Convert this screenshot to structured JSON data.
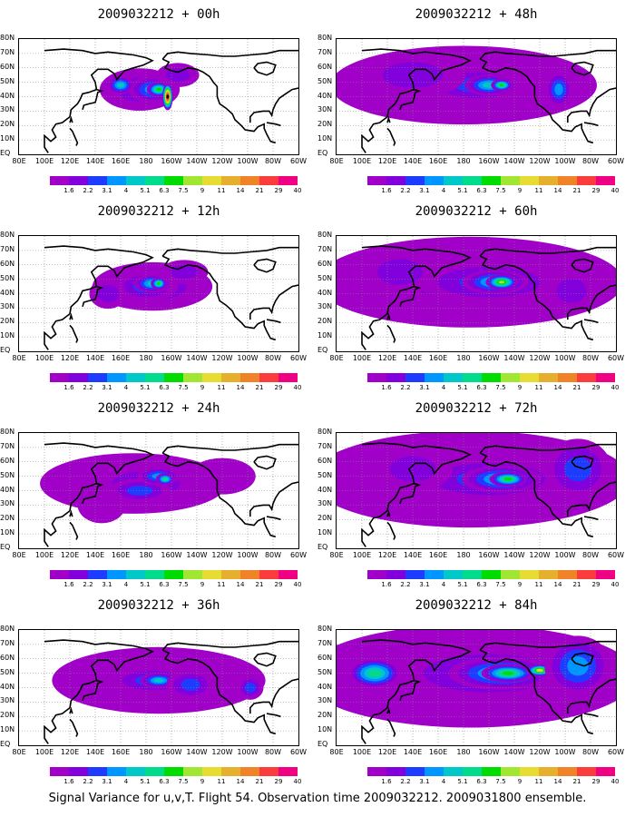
{
  "chart_data": {
    "type": "heatmap",
    "caption": "Signal Variance for u,v,T. Flight 54. Observation time 2009032212. 2009031800 ensemble.",
    "x_ticks": [
      "80E",
      "100E",
      "120E",
      "140E",
      "160E",
      "180",
      "160W",
      "140W",
      "120W",
      "100W",
      "80W",
      "60W"
    ],
    "y_ticks": [
      "80N",
      "70N",
      "60N",
      "50N",
      "40N",
      "30N",
      "20N",
      "10N",
      "EQ"
    ],
    "grid": true,
    "colorbar": {
      "levels": [
        "1.6",
        "2.2",
        "3.1",
        "4",
        "5.1",
        "6.3",
        "7.5",
        "9",
        "11",
        "14",
        "21",
        "29",
        "40"
      ],
      "colors": [
        "#a000c8",
        "#8200dc",
        "#1e3cff",
        "#0096ff",
        "#00c8c8",
        "#00dc8c",
        "#00dc00",
        "#a0e632",
        "#e6dc32",
        "#e6af2d",
        "#f08228",
        "#fa3c3c",
        "#f00082"
      ]
    },
    "panels": [
      {
        "title": "2009032212 + 00h",
        "blobs": [
          [
            175,
            45,
            30,
            14,
            1
          ],
          [
            185,
            45,
            18,
            9,
            3
          ],
          [
            190,
            45,
            9,
            5,
            6
          ],
          [
            197,
            40,
            4,
            9,
            13
          ],
          [
            160,
            48,
            10,
            6,
            4
          ],
          [
            205,
            55,
            16,
            8,
            1
          ]
        ]
      },
      {
        "title": "2009032212 + 12h",
        "blobs": [
          [
            185,
            45,
            45,
            16,
            1
          ],
          [
            180,
            45,
            24,
            10,
            2
          ],
          [
            185,
            47,
            14,
            6,
            4
          ],
          [
            190,
            47,
            6,
            4,
            6
          ],
          [
            210,
            55,
            18,
            8,
            1
          ],
          [
            150,
            40,
            14,
            10,
            1
          ]
        ]
      },
      {
        "title": "2009032212 + 24h",
        "blobs": [
          [
            170,
            45,
            70,
            20,
            0
          ],
          [
            180,
            45,
            45,
            14,
            1
          ],
          [
            175,
            40,
            24,
            8,
            2
          ],
          [
            190,
            50,
            16,
            6,
            3
          ],
          [
            195,
            48,
            7,
            4,
            5
          ],
          [
            240,
            50,
            25,
            12,
            0
          ],
          [
            145,
            30,
            18,
            12,
            0
          ]
        ]
      },
      {
        "title": "2009032212 + 36h",
        "blobs": [
          [
            190,
            45,
            80,
            22,
            0
          ],
          [
            185,
            45,
            55,
            15,
            1
          ],
          [
            185,
            45,
            32,
            9,
            2
          ],
          [
            190,
            45,
            14,
            5,
            4
          ],
          [
            215,
            42,
            18,
            10,
            2
          ],
          [
            262,
            40,
            10,
            8,
            2
          ]
        ]
      },
      {
        "title": "2009032212 + 48h",
        "blobs": [
          [
            180,
            48,
            100,
            26,
            0
          ],
          [
            185,
            48,
            70,
            18,
            1
          ],
          [
            190,
            48,
            40,
            12,
            2
          ],
          [
            200,
            48,
            18,
            7,
            4
          ],
          [
            210,
            48,
            8,
            4,
            6
          ],
          [
            255,
            45,
            10,
            12,
            3
          ],
          [
            140,
            55,
            40,
            15,
            1
          ]
        ]
      },
      {
        "title": "2009032212 + 60h",
        "blobs": [
          [
            185,
            48,
            115,
            30,
            0
          ],
          [
            190,
            48,
            85,
            22,
            1
          ],
          [
            200,
            48,
            55,
            14,
            2
          ],
          [
            205,
            48,
            25,
            8,
            4
          ],
          [
            210,
            48,
            12,
            5,
            7
          ],
          [
            265,
            42,
            20,
            14,
            1
          ],
          [
            130,
            55,
            30,
            15,
            1
          ]
        ]
      },
      {
        "title": "2009032212 + 72h",
        "blobs": [
          [
            185,
            48,
            120,
            32,
            0
          ],
          [
            195,
            48,
            95,
            25,
            1
          ],
          [
            200,
            48,
            60,
            15,
            2
          ],
          [
            210,
            48,
            30,
            9,
            4
          ],
          [
            215,
            48,
            14,
            5,
            6
          ],
          [
            270,
            55,
            25,
            20,
            2
          ],
          [
            140,
            55,
            30,
            15,
            1
          ]
        ]
      },
      {
        "title": "2009032212 + 84h",
        "blobs": [
          [
            185,
            48,
            125,
            34,
            0
          ],
          [
            190,
            50,
            100,
            27,
            1
          ],
          [
            200,
            50,
            70,
            18,
            2
          ],
          [
            210,
            50,
            40,
            11,
            4
          ],
          [
            215,
            50,
            20,
            6,
            6
          ],
          [
            240,
            52,
            10,
            4,
            8
          ],
          [
            270,
            55,
            25,
            20,
            3
          ],
          [
            110,
            50,
            20,
            10,
            5
          ]
        ]
      }
    ]
  }
}
